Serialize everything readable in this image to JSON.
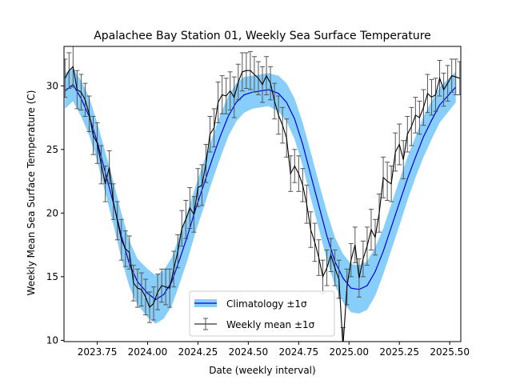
{
  "chart_data": {
    "type": "line",
    "title": "Apalachee Bay Station 01, Weekly Sea Surface Temperature",
    "xlabel": "Date (weekly interval)",
    "ylabel": "Weekly Mean Sea Surface Temperature (C)",
    "xlim": [
      2023.585,
      2025.555
    ],
    "ylim": [
      9.9,
      33.1
    ],
    "xticks": [
      2023.75,
      2024.0,
      2024.25,
      2024.5,
      2024.75,
      2025.0,
      2025.25,
      2025.5
    ],
    "xtick_labels": [
      "2023.75",
      "2024.00",
      "2024.25",
      "2024.50",
      "2024.75",
      "2025.00",
      "2025.25",
      "2025.50"
    ],
    "yticks": [
      10,
      15,
      20,
      25,
      30
    ],
    "ytick_labels": [
      "10",
      "15",
      "20",
      "25",
      "30"
    ],
    "grid": false,
    "legend_position": "lower center",
    "legend": [
      {
        "label": "Climatology ±1σ",
        "kind": "band-line"
      },
      {
        "label": "Weekly mean ±1σ",
        "kind": "errorbar-line"
      }
    ],
    "colors": {
      "climatology_line": "#0000dd",
      "climatology_band": "#87cefa",
      "weekly_line": "#000000",
      "errorbar": "#555555"
    },
    "series": [
      {
        "name": "Climatology ±1σ",
        "x": [
          2023.59,
          2023.63,
          2023.67,
          2023.71,
          2023.75,
          2023.79,
          2023.83,
          2023.87,
          2023.91,
          2023.95,
          2024.0,
          2024.04,
          2024.08,
          2024.12,
          2024.16,
          2024.2,
          2024.24,
          2024.28,
          2024.32,
          2024.36,
          2024.4,
          2024.44,
          2024.48,
          2024.52,
          2024.56,
          2024.6,
          2024.65,
          2024.69,
          2024.73,
          2024.77,
          2024.81,
          2024.85,
          2024.89,
          2024.93,
          2024.97,
          2025.01,
          2025.05,
          2025.09,
          2025.13,
          2025.17,
          2025.21,
          2025.25,
          2025.29,
          2025.33,
          2025.37,
          2025.41,
          2025.45,
          2025.49,
          2025.53
        ],
        "mean": [
          29.6,
          30.1,
          29.0,
          27.6,
          25.6,
          23.2,
          20.8,
          18.2,
          16.0,
          14.6,
          13.7,
          13.2,
          13.6,
          14.6,
          16.4,
          18.3,
          20.4,
          22.3,
          24.2,
          26.0,
          27.6,
          28.7,
          29.3,
          29.5,
          29.6,
          29.7,
          29.4,
          28.7,
          27.4,
          25.4,
          23.0,
          20.6,
          18.2,
          16.2,
          14.9,
          14.1,
          14.0,
          14.3,
          15.4,
          17.0,
          18.9,
          20.8,
          22.7,
          24.4,
          26.0,
          27.3,
          28.5,
          29.2,
          29.9
        ],
        "std": [
          1.4,
          1.3,
          1.4,
          1.5,
          1.5,
          1.6,
          1.7,
          1.8,
          1.8,
          1.8,
          1.9,
          1.9,
          1.9,
          1.9,
          1.9,
          1.9,
          1.8,
          1.8,
          1.7,
          1.7,
          1.6,
          1.5,
          1.4,
          1.3,
          1.3,
          1.3,
          1.4,
          1.5,
          1.6,
          1.7,
          1.8,
          1.8,
          1.9,
          1.9,
          1.9,
          1.9,
          1.9,
          1.9,
          1.9,
          1.8,
          1.8,
          1.8,
          1.7,
          1.6,
          1.6,
          1.5,
          1.4,
          1.3,
          1.2
        ]
      },
      {
        "name": "Weekly mean ±1σ",
        "x": [
          2023.59,
          2023.61,
          2023.63,
          2023.65,
          2023.67,
          2023.69,
          2023.71,
          2023.73,
          2023.75,
          2023.77,
          2023.79,
          2023.81,
          2023.83,
          2023.85,
          2023.87,
          2023.89,
          2023.91,
          2023.93,
          2023.95,
          2023.97,
          2023.99,
          2024.01,
          2024.03,
          2024.05,
          2024.07,
          2024.09,
          2024.11,
          2024.13,
          2024.15,
          2024.17,
          2024.19,
          2024.21,
          2024.23,
          2024.25,
          2024.27,
          2024.29,
          2024.31,
          2024.33,
          2024.35,
          2024.37,
          2024.39,
          2024.41,
          2024.43,
          2024.45,
          2024.47,
          2024.49,
          2024.51,
          2024.53,
          2024.55,
          2024.57,
          2024.59,
          2024.61,
          2024.63,
          2024.65,
          2024.67,
          2024.69,
          2024.71,
          2024.73,
          2024.75,
          2024.77,
          2024.79,
          2024.81,
          2024.83,
          2024.85,
          2024.87,
          2024.89,
          2024.91,
          2024.93,
          2024.95,
          2024.97,
          2024.99,
          2025.01,
          2025.03,
          2025.05,
          2025.07,
          2025.09,
          2025.11,
          2025.13,
          2025.15,
          2025.17,
          2025.19,
          2025.21,
          2025.23,
          2025.25,
          2025.27,
          2025.29,
          2025.31,
          2025.33,
          2025.35,
          2025.37,
          2025.39,
          2025.41,
          2025.43,
          2025.45,
          2025.47,
          2025.49,
          2025.51,
          2025.53,
          2025.55
        ],
        "y": [
          30.6,
          31.2,
          31.5,
          29.7,
          29.5,
          28.9,
          27.8,
          26.1,
          25.5,
          23.8,
          22.3,
          23.6,
          20.9,
          19.4,
          17.9,
          17.2,
          16.9,
          14.5,
          14.1,
          14.0,
          13.4,
          12.6,
          12.9,
          13.8,
          14.3,
          14.2,
          14.1,
          15.6,
          17.0,
          18.8,
          19.5,
          20.4,
          19.9,
          22.0,
          22.2,
          23.9,
          26.2,
          26.7,
          28.7,
          29.3,
          29.2,
          29.6,
          29.1,
          30.3,
          31.1,
          31.2,
          31.2,
          30.9,
          30.6,
          30.1,
          30.8,
          30.2,
          28.8,
          27.7,
          26.9,
          25.9,
          23.1,
          23.7,
          23.1,
          22.2,
          20.7,
          18.7,
          17.7,
          16.5,
          15.0,
          15.7,
          16.7,
          15.7,
          14.8,
          9.5,
          14.2,
          16.3,
          17.5,
          14.9,
          16.4,
          17.4,
          18.7,
          18.1,
          20.0,
          22.8,
          22.5,
          22.3,
          24.8,
          25.4,
          24.2,
          26.2,
          26.8,
          27.7,
          27.5,
          28.3,
          29.4,
          29.1,
          29.3,
          30.6,
          29.7,
          30.2,
          30.8,
          30.7,
          30.6
        ],
        "err": [
          1.5,
          1.4,
          1.6,
          1.5,
          1.4,
          1.3,
          1.4,
          1.5,
          1.6,
          1.5,
          1.4,
          1.3,
          1.4,
          1.5,
          1.6,
          1.4,
          1.3,
          1.4,
          1.5,
          1.3,
          1.4,
          1.2,
          1.3,
          1.4,
          1.3,
          1.4,
          1.5,
          1.4,
          1.3,
          1.4,
          1.5,
          1.6,
          1.4,
          1.5,
          1.6,
          1.5,
          1.4,
          1.5,
          1.6,
          1.5,
          1.4,
          1.5,
          1.6,
          1.4,
          1.5,
          1.4,
          1.5,
          1.4,
          1.3,
          1.4,
          1.5,
          1.3,
          1.4,
          1.5,
          1.4,
          1.5,
          1.4,
          1.3,
          1.4,
          1.3,
          1.5,
          1.4,
          1.5,
          1.4,
          1.3,
          1.4,
          1.3,
          1.4,
          1.5,
          1.5,
          1.4,
          1.3,
          1.4,
          1.5,
          1.4,
          1.5,
          1.6,
          1.4,
          1.5,
          1.6,
          1.5,
          1.4,
          1.5,
          1.6,
          1.5,
          1.4,
          1.5,
          1.4,
          1.3,
          1.4,
          1.5,
          1.4,
          1.3,
          1.4,
          1.3,
          1.4,
          1.3,
          1.4,
          1.3
        ]
      }
    ]
  }
}
